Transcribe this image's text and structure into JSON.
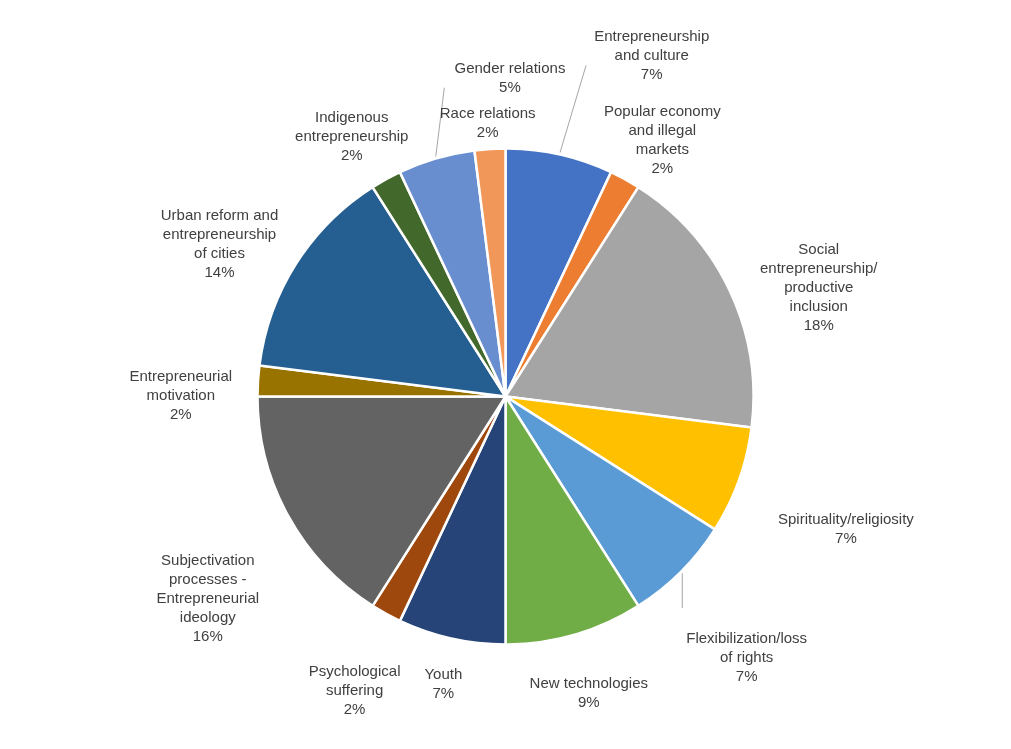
{
  "chart_data": {
    "type": "pie",
    "categories": [
      "Entrepreneurship and culture",
      "Popular economy and illegal markets",
      "Social entrepreneurship/ productive inclusion",
      "Spirituality/religiosity",
      "Flexibilization/loss of rights",
      "New technologies",
      "Youth",
      "Psychological suffering",
      "Subjectivation processes - Entrepreneurial ideology",
      "Entrepreneurial motivation",
      "Urban reform and entrepreneurship of cities",
      "Indigenous entrepreneurship",
      "Gender relations",
      "Race relations"
    ],
    "values": [
      7,
      2,
      18,
      7,
      7,
      9,
      7,
      2,
      16,
      2,
      14,
      2,
      5,
      2
    ],
    "value_labels": [
      "7%",
      "2%",
      "18%",
      "7%",
      "7%",
      "9%",
      "7%",
      "2%",
      "16%",
      "2%",
      "14%",
      "2%",
      "5%",
      "2%"
    ],
    "colors": [
      "#4472c4",
      "#ed7d31",
      "#a5a5a5",
      "#ffc000",
      "#5b9bd5",
      "#70ad47",
      "#264478",
      "#9e480e",
      "#636363",
      "#997300",
      "#255e91",
      "#43682b",
      "#698ed0",
      "#f1975a"
    ]
  }
}
